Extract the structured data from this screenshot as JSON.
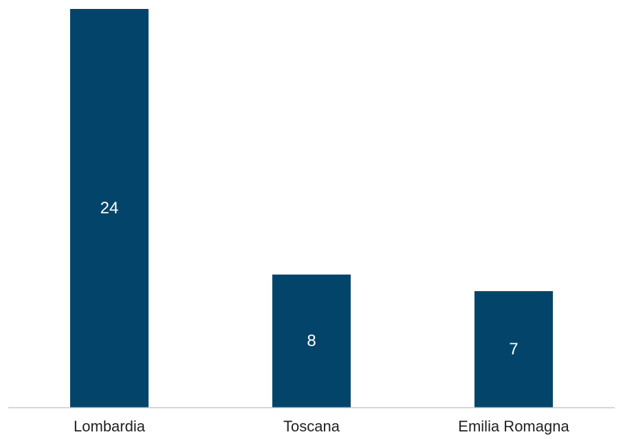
{
  "chart_data": {
    "type": "bar",
    "categories": [
      "Lombardia",
      "Toscana",
      "Emilia Romagna"
    ],
    "values": [
      24,
      8,
      7
    ],
    "data_labels": [
      "24",
      "8",
      "7"
    ],
    "title": "",
    "xlabel": "",
    "ylabel": "",
    "ylim": [
      0,
      24
    ],
    "grid": false,
    "legend": "none",
    "colors": {
      "bar": "#03456A",
      "axis": "#C8C8C8",
      "data_label": "#FFFFFF",
      "tick_label": "#222222"
    }
  }
}
